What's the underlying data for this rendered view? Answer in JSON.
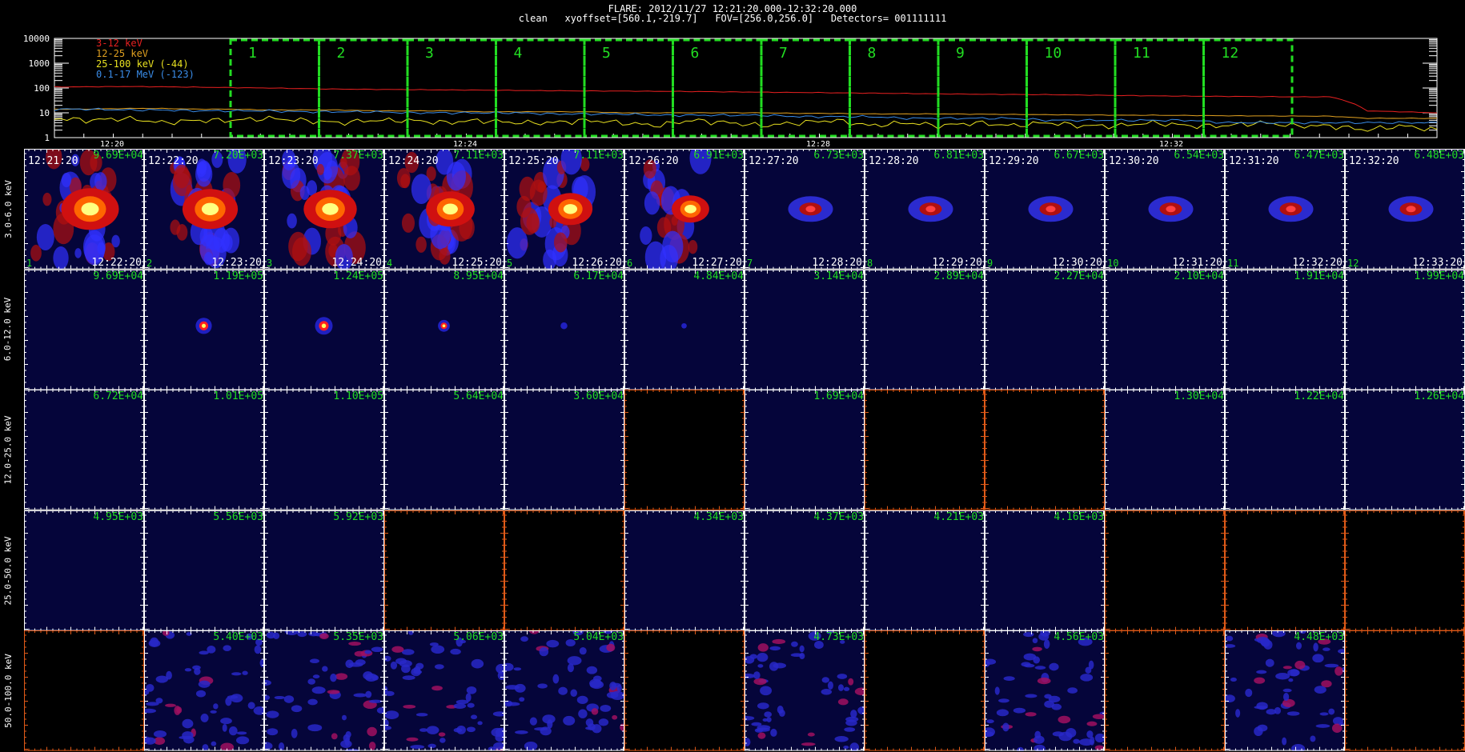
{
  "header": {
    "line1": "FLARE: 2012/11/27 12:21:20.000-12:32:20.000",
    "line2": "clean   xyoffset=[560.1,-219.7]   FOV=[256.0,256.0]   Detectors= 001111111"
  },
  "lightcurve": {
    "legend": [
      {
        "label": "3-12 keV",
        "color": "#e82020"
      },
      {
        "label": "12-25 keV",
        "color": "#e0a020"
      },
      {
        "label": "25-100 keV (-44)",
        "color": "#e8e020"
      },
      {
        "label": "0.1-17 MeV (-123)",
        "color": "#3a8ce8"
      }
    ],
    "y_ticks": [
      "10000",
      "1000",
      "100",
      "10",
      "1"
    ],
    "x_ticks": [
      "12:20",
      "12:24",
      "12:28",
      "12:32"
    ],
    "y_scale": "log",
    "intervals": [
      "1",
      "2",
      "3",
      "4",
      "5",
      "6",
      "7",
      "8",
      "9",
      "10",
      "11",
      "12"
    ],
    "interval_color": "#22dd22",
    "series_levels": {
      "3-12 keV": [
        110,
        112,
        115,
        112,
        108,
        104,
        100,
        95,
        90,
        88,
        86,
        84,
        82,
        80,
        78,
        76,
        75,
        74,
        72,
        70,
        68,
        66,
        64,
        62,
        60,
        58,
        56,
        55,
        54,
        52,
        50,
        48,
        47,
        46,
        45,
        44,
        44,
        12,
        11,
        10
      ],
      "12-25 keV": [
        14,
        14,
        15,
        15,
        14,
        14,
        13,
        13,
        13,
        12,
        12,
        12,
        11,
        11,
        11,
        11,
        10,
        10,
        10,
        10,
        10,
        9.5,
        9.5,
        9,
        9,
        9,
        8.8,
        8.6,
        8.4,
        8.2,
        8,
        8,
        7.8,
        7.6,
        7.5,
        7.4,
        7.3,
        6,
        6,
        6
      ],
      "25-100 keV (-44)": [
        6,
        5,
        6,
        4,
        5,
        5,
        6,
        5,
        4,
        5,
        5,
        4,
        5,
        4,
        4,
        5,
        4,
        3,
        5,
        4,
        3,
        4,
        5,
        3,
        4,
        3,
        4,
        3,
        4,
        3,
        3,
        4,
        3,
        3,
        4,
        3,
        3,
        2,
        3,
        2
      ],
      "0.1-17 MeV (-123)": [
        14,
        14,
        13,
        13,
        12,
        12,
        12,
        11,
        11,
        11,
        10,
        10,
        10,
        10,
        9,
        9,
        9,
        8,
        8,
        8,
        8,
        7,
        7,
        7,
        6,
        6,
        6,
        6,
        5,
        5,
        5,
        5,
        5,
        4,
        4,
        4,
        4,
        4,
        4,
        4
      ]
    }
  },
  "rows": [
    {
      "label": "3.0-6.0 keV",
      "cells": [
        {
          "t0": "12:21:20",
          "t1": "12:22:20",
          "peak": "9.69E+04",
          "n": "1",
          "img": "diffuse",
          "size": 1.0
        },
        {
          "t0": "12:22:20",
          "t1": "12:23:20",
          "peak": "7.20E+03",
          "n": "2",
          "img": "diffuse",
          "size": 0.95
        },
        {
          "t0": "12:23:20",
          "t1": "12:24:20",
          "peak": "7.37E+03",
          "n": "3",
          "img": "diffuse",
          "size": 0.9
        },
        {
          "t0": "12:24:20",
          "t1": "12:25:20",
          "peak": "7.11E+03",
          "n": "4",
          "img": "diffuse",
          "size": 0.8
        },
        {
          "t0": "12:25:20",
          "t1": "12:26:20",
          "peak": "7.11E+03",
          "n": "5",
          "img": "diffuse",
          "size": 0.7
        },
        {
          "t0": "12:26:20",
          "t1": "12:27:20",
          "peak": "6.91E+03",
          "n": "6",
          "img": "diffuse",
          "size": 0.55
        },
        {
          "t0": "12:27:20",
          "t1": "12:28:20",
          "peak": "6.73E+03",
          "n": "7",
          "img": "blob",
          "size": 0.45
        },
        {
          "t0": "12:28:20",
          "t1": "12:29:20",
          "peak": "6.81E+03",
          "n": "8",
          "img": "blob",
          "size": 0.4
        },
        {
          "t0": "12:29:20",
          "t1": "12:30:20",
          "peak": "6.67E+03",
          "n": "9",
          "img": "blob",
          "size": 0.38
        },
        {
          "t0": "12:30:20",
          "t1": "12:31:20",
          "peak": "6.54E+03",
          "n": "10",
          "img": "blob",
          "size": 0.38
        },
        {
          "t0": "12:31:20",
          "t1": "12:32:20",
          "peak": "6.47E+03",
          "n": "11",
          "img": "blob",
          "size": 0.36
        },
        {
          "t0": "12:32:20",
          "t1": "12:33:20",
          "peak": "6.48E+03",
          "n": "12",
          "img": "blob",
          "size": 0.36
        }
      ]
    },
    {
      "label": "6.0-12.0 keV",
      "cells": [
        {
          "peak": "9.69E+04",
          "img": "empty"
        },
        {
          "peak": "1.19E+05",
          "img": "dot",
          "size": 0.9
        },
        {
          "peak": "1.24E+05",
          "img": "dot",
          "size": 1.0
        },
        {
          "peak": "8.95E+04",
          "img": "dot",
          "size": 0.6
        },
        {
          "peak": "6.17E+04",
          "img": "dot",
          "size": 0.25
        },
        {
          "peak": "4.84E+04",
          "img": "dot",
          "size": 0.15
        },
        {
          "peak": "3.14E+04",
          "img": "empty"
        },
        {
          "peak": "2.89E+04",
          "img": "empty"
        },
        {
          "peak": "2.27E+04",
          "img": "empty"
        },
        {
          "peak": "2.10E+04",
          "img": "empty"
        },
        {
          "peak": "1.91E+04",
          "img": "empty"
        },
        {
          "peak": "1.99E+04",
          "img": "empty"
        }
      ]
    },
    {
      "label": "12.0-25.0 keV",
      "cells": [
        {
          "peak": "6.72E+04",
          "img": "empty"
        },
        {
          "peak": "1.01E+05",
          "img": "empty"
        },
        {
          "peak": "1.10E+05",
          "img": "empty"
        },
        {
          "peak": "5.64E+04",
          "img": "empty"
        },
        {
          "peak": "3.60E+04",
          "img": "empty"
        },
        {
          "peak": "",
          "img": "black"
        },
        {
          "peak": "1.69E+04",
          "img": "empty"
        },
        {
          "peak": "",
          "img": "black"
        },
        {
          "peak": "",
          "img": "black"
        },
        {
          "peak": "1.30E+04",
          "img": "empty"
        },
        {
          "peak": "1.22E+04",
          "img": "empty"
        },
        {
          "peak": "1.26E+04",
          "img": "empty"
        }
      ]
    },
    {
      "label": "25.0-50.0 keV",
      "cells": [
        {
          "peak": "4.95E+03",
          "img": "empty"
        },
        {
          "peak": "5.56E+03",
          "img": "empty"
        },
        {
          "peak": "5.92E+03",
          "img": "empty"
        },
        {
          "peak": "",
          "img": "black"
        },
        {
          "peak": "",
          "img": "black"
        },
        {
          "peak": "4.34E+03",
          "img": "empty"
        },
        {
          "peak": "4.37E+03",
          "img": "empty"
        },
        {
          "peak": "4.21E+03",
          "img": "empty"
        },
        {
          "peak": "4.16E+03",
          "img": "empty"
        },
        {
          "peak": "",
          "img": "black"
        },
        {
          "peak": "",
          "img": "black"
        },
        {
          "peak": "",
          "img": "black"
        }
      ]
    },
    {
      "label": "50.0-100.0 keV",
      "cells": [
        {
          "peak": "",
          "img": "black"
        },
        {
          "peak": "5.40E+03",
          "img": "noise"
        },
        {
          "peak": "5.35E+03",
          "img": "noise"
        },
        {
          "peak": "5.06E+03",
          "img": "noise"
        },
        {
          "peak": "5.04E+03",
          "img": "noise"
        },
        {
          "peak": "",
          "img": "black"
        },
        {
          "peak": "4.73E+03",
          "img": "noise"
        },
        {
          "peak": "",
          "img": "black"
        },
        {
          "peak": "4.56E+03",
          "img": "noise"
        },
        {
          "peak": "",
          "img": "black"
        },
        {
          "peak": "4.48E+03",
          "img": "noise"
        },
        {
          "peak": "",
          "img": "black"
        }
      ]
    }
  ],
  "chart_data": {
    "type": "heatmap",
    "title": "FLARE: 2012/11/27 12:21:20.000-12:32:20.000",
    "rows": [
      "3.0-6.0 keV",
      "6.0-12.0 keV",
      "12.0-25.0 keV",
      "25.0-50.0 keV",
      "50.0-100.0 keV"
    ],
    "columns": [
      "1",
      "2",
      "3",
      "4",
      "5",
      "6",
      "7",
      "8",
      "9",
      "10",
      "11",
      "12"
    ],
    "peak_values": [
      [
        "9.69E+04",
        "7.20E+03",
        "7.37E+03",
        "7.11E+03",
        "7.11E+03",
        "6.91E+03",
        "6.73E+03",
        "6.81E+03",
        "6.67E+03",
        "6.54E+03",
        "6.47E+03",
        "6.48E+03"
      ],
      [
        "9.69E+04",
        "1.19E+05",
        "1.24E+05",
        "8.95E+04",
        "6.17E+04",
        "4.84E+04",
        "3.14E+04",
        "2.89E+04",
        "2.27E+04",
        "2.10E+04",
        "1.91E+04",
        "1.99E+04"
      ],
      [
        "6.72E+04",
        "1.01E+05",
        "1.10E+05",
        "5.64E+04",
        "3.60E+04",
        "",
        "1.69E+04",
        "",
        "",
        "1.30E+04",
        "1.22E+04",
        "1.26E+04"
      ],
      [
        "4.95E+03",
        "5.56E+03",
        "5.92E+03",
        "",
        "",
        "4.34E+03",
        "4.37E+03",
        "4.21E+03",
        "4.16E+03",
        "",
        "",
        ""
      ],
      [
        "",
        "5.40E+03",
        "5.35E+03",
        "5.06E+03",
        "5.04E+03",
        "",
        "4.73E+03",
        "",
        "4.56E+03",
        "",
        "4.48E+03",
        ""
      ]
    ]
  }
}
